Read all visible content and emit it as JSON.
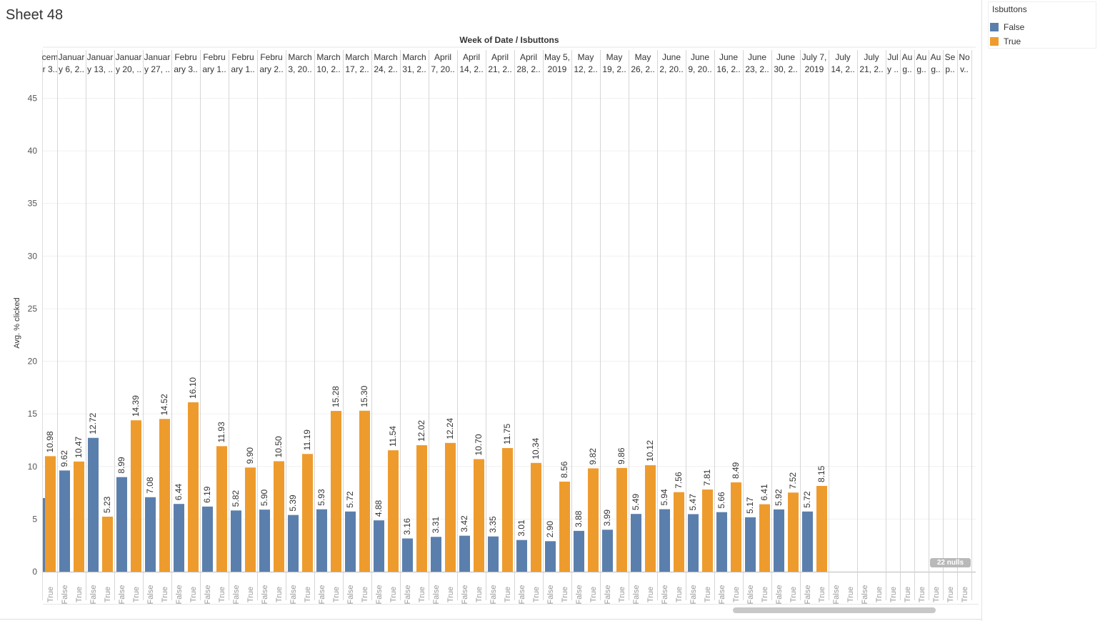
{
  "sheet_title": "Sheet 48",
  "legend": {
    "title": "Isbuttons",
    "items": [
      {
        "label": "False",
        "color": "#5b7fad"
      },
      {
        "label": "True",
        "color": "#ee9b2d"
      }
    ]
  },
  "nulls_label": "22 nulls",
  "chart_data": {
    "type": "bar",
    "title": "Week of Date  /  Isbuttons",
    "ylabel": "Avg. % clicked",
    "ylim": [
      0,
      45
    ],
    "yticks": [
      0,
      5,
      10,
      15,
      20,
      25,
      30,
      35,
      40,
      45
    ],
    "grid": true,
    "legend_position": "top-right",
    "series_colors": {
      "False": "#5b7fad",
      "True": "#ee9b2d"
    },
    "weeks": [
      {
        "label": [
          "cem",
          "r 3.."
        ],
        "bars": [
          {
            "series": "True",
            "value": 10.98,
            "label": "10.98"
          }
        ]
      },
      {
        "label": [
          "Januar",
          "y 6, 2.."
        ],
        "bars": [
          {
            "series": "False",
            "value": 9.62,
            "label": "9.62"
          },
          {
            "series": "True",
            "value": 10.47,
            "label": "10.47"
          }
        ]
      },
      {
        "label": [
          "Januar",
          "y 13, .."
        ],
        "bars": [
          {
            "series": "False",
            "value": 12.72,
            "label": "12.72"
          },
          {
            "series": "True",
            "value": 5.23,
            "label": "5.23"
          }
        ]
      },
      {
        "label": [
          "Januar",
          "y 20, .."
        ],
        "bars": [
          {
            "series": "False",
            "value": 8.99,
            "label": "8.99"
          },
          {
            "series": "True",
            "value": 14.39,
            "label": "14.39"
          }
        ]
      },
      {
        "label": [
          "Januar",
          "y 27, .."
        ],
        "bars": [
          {
            "series": "False",
            "value": 7.08,
            "label": "7.08"
          },
          {
            "series": "True",
            "value": 14.52,
            "label": "14.52"
          }
        ]
      },
      {
        "label": [
          "Febru",
          "ary 3.."
        ],
        "bars": [
          {
            "series": "False",
            "value": 6.44,
            "label": "6.44"
          },
          {
            "series": "True",
            "value": 16.1,
            "label": "16.10"
          }
        ]
      },
      {
        "label": [
          "Febru",
          "ary 1.."
        ],
        "bars": [
          {
            "series": "False",
            "value": 6.19,
            "label": "6.19"
          },
          {
            "series": "True",
            "value": 11.93,
            "label": "11.93"
          }
        ]
      },
      {
        "label": [
          "Febru",
          "ary 1.."
        ],
        "bars": [
          {
            "series": "False",
            "value": 5.82,
            "label": "5.82"
          },
          {
            "series": "True",
            "value": 9.9,
            "label": "9.90"
          }
        ]
      },
      {
        "label": [
          "Febru",
          "ary 2.."
        ],
        "bars": [
          {
            "series": "False",
            "value": 5.9,
            "label": "5.90"
          },
          {
            "series": "True",
            "value": 10.5,
            "label": "10.50"
          }
        ]
      },
      {
        "label": [
          "March",
          "3, 20.."
        ],
        "bars": [
          {
            "series": "False",
            "value": 5.39,
            "label": "5.39"
          },
          {
            "series": "True",
            "value": 11.19,
            "label": "11.19"
          }
        ]
      },
      {
        "label": [
          "March",
          "10, 2.."
        ],
        "bars": [
          {
            "series": "False",
            "value": 5.93,
            "label": "5.93"
          },
          {
            "series": "True",
            "value": 15.28,
            "label": "15.28"
          }
        ]
      },
      {
        "label": [
          "March",
          "17, 2.."
        ],
        "bars": [
          {
            "series": "False",
            "value": 5.72,
            "label": "5.72"
          },
          {
            "series": "True",
            "value": 15.3,
            "label": "15.30"
          }
        ]
      },
      {
        "label": [
          "March",
          "24, 2.."
        ],
        "bars": [
          {
            "series": "False",
            "value": 4.88,
            "label": "4.88"
          },
          {
            "series": "True",
            "value": 11.54,
            "label": "11.54"
          }
        ]
      },
      {
        "label": [
          "March",
          "31, 2.."
        ],
        "bars": [
          {
            "series": "False",
            "value": 3.16,
            "label": "3.16"
          },
          {
            "series": "True",
            "value": 12.02,
            "label": "12.02"
          }
        ]
      },
      {
        "label": [
          "April",
          "7, 20.."
        ],
        "bars": [
          {
            "series": "False",
            "value": 3.31,
            "label": "3.31"
          },
          {
            "series": "True",
            "value": 12.24,
            "label": "12.24"
          }
        ]
      },
      {
        "label": [
          "April",
          "14, 2.."
        ],
        "bars": [
          {
            "series": "False",
            "value": 3.42,
            "label": "3.42"
          },
          {
            "series": "True",
            "value": 10.7,
            "label": "10.70"
          }
        ]
      },
      {
        "label": [
          "April",
          "21, 2.."
        ],
        "bars": [
          {
            "series": "False",
            "value": 3.35,
            "label": "3.35"
          },
          {
            "series": "True",
            "value": 11.75,
            "label": "11.75"
          }
        ]
      },
      {
        "label": [
          "April",
          "28, 2.."
        ],
        "bars": [
          {
            "series": "False",
            "value": 3.01,
            "label": "3.01"
          },
          {
            "series": "True",
            "value": 10.34,
            "label": "10.34"
          }
        ]
      },
      {
        "label": [
          "May 5,",
          "2019"
        ],
        "bars": [
          {
            "series": "False",
            "value": 2.9,
            "label": "2.90"
          },
          {
            "series": "True",
            "value": 8.56,
            "label": "8.56"
          }
        ]
      },
      {
        "label": [
          "May",
          "12, 2.."
        ],
        "bars": [
          {
            "series": "False",
            "value": 3.88,
            "label": "3.88"
          },
          {
            "series": "True",
            "value": 9.82,
            "label": "9.82"
          }
        ]
      },
      {
        "label": [
          "May",
          "19, 2.."
        ],
        "bars": [
          {
            "series": "False",
            "value": 3.99,
            "label": "3.99"
          },
          {
            "series": "True",
            "value": 9.86,
            "label": "9.86"
          }
        ]
      },
      {
        "label": [
          "May",
          "26, 2.."
        ],
        "bars": [
          {
            "series": "False",
            "value": 5.49,
            "label": "5.49"
          },
          {
            "series": "True",
            "value": 10.12,
            "label": "10.12"
          }
        ]
      },
      {
        "label": [
          "June",
          "2, 20.."
        ],
        "bars": [
          {
            "series": "False",
            "value": 5.94,
            "label": "5.94"
          },
          {
            "series": "True",
            "value": 7.56,
            "label": "7.56"
          }
        ]
      },
      {
        "label": [
          "June",
          "9, 20.."
        ],
        "bars": [
          {
            "series": "False",
            "value": 5.47,
            "label": "5.47"
          },
          {
            "series": "True",
            "value": 7.81,
            "label": "7.81"
          }
        ]
      },
      {
        "label": [
          "June",
          "16, 2.."
        ],
        "bars": [
          {
            "series": "False",
            "value": 5.66,
            "label": "5.66"
          },
          {
            "series": "True",
            "value": 8.49,
            "label": "8.49"
          }
        ]
      },
      {
        "label": [
          "June",
          "23, 2.."
        ],
        "bars": [
          {
            "series": "False",
            "value": 5.17,
            "label": "5.17"
          },
          {
            "series": "True",
            "value": 6.41,
            "label": "6.41"
          }
        ]
      },
      {
        "label": [
          "June",
          "30, 2.."
        ],
        "bars": [
          {
            "series": "False",
            "value": 5.92,
            "label": "5.92"
          },
          {
            "series": "True",
            "value": 7.52,
            "label": "7.52"
          }
        ]
      },
      {
        "label": [
          "July 7,",
          "2019"
        ],
        "bars": [
          {
            "series": "False",
            "value": 5.72,
            "label": "5.72"
          },
          {
            "series": "True",
            "value": 8.15,
            "label": "8.15"
          }
        ]
      },
      {
        "label": [
          "July",
          "14, 2.."
        ],
        "bars": [
          {
            "series": "False",
            "value": null,
            "label": ""
          },
          {
            "series": "True",
            "value": null,
            "label": ""
          }
        ]
      },
      {
        "label": [
          "July",
          "21, 2.."
        ],
        "bars": [
          {
            "series": "False",
            "value": null,
            "label": ""
          },
          {
            "series": "True",
            "value": null,
            "label": ""
          }
        ]
      },
      {
        "label": [
          "Jul",
          "y .."
        ],
        "bars": [
          {
            "series": "True",
            "value": null,
            "label": ""
          }
        ]
      },
      {
        "label": [
          "Au",
          "g.."
        ],
        "bars": [
          {
            "series": "True",
            "value": null,
            "label": ""
          }
        ]
      },
      {
        "label": [
          "Au",
          "g.."
        ],
        "bars": [
          {
            "series": "True",
            "value": null,
            "label": ""
          }
        ]
      },
      {
        "label": [
          "Au",
          "g.."
        ],
        "bars": [
          {
            "series": "True",
            "value": null,
            "label": ""
          }
        ]
      },
      {
        "label": [
          "Se",
          "p.."
        ],
        "bars": [
          {
            "series": "True",
            "value": null,
            "label": ""
          }
        ]
      },
      {
        "label": [
          "No",
          "v.."
        ],
        "bars": [
          {
            "series": "True",
            "value": null,
            "label": ""
          }
        ]
      }
    ],
    "first_partial_false_value": 7.0
  }
}
